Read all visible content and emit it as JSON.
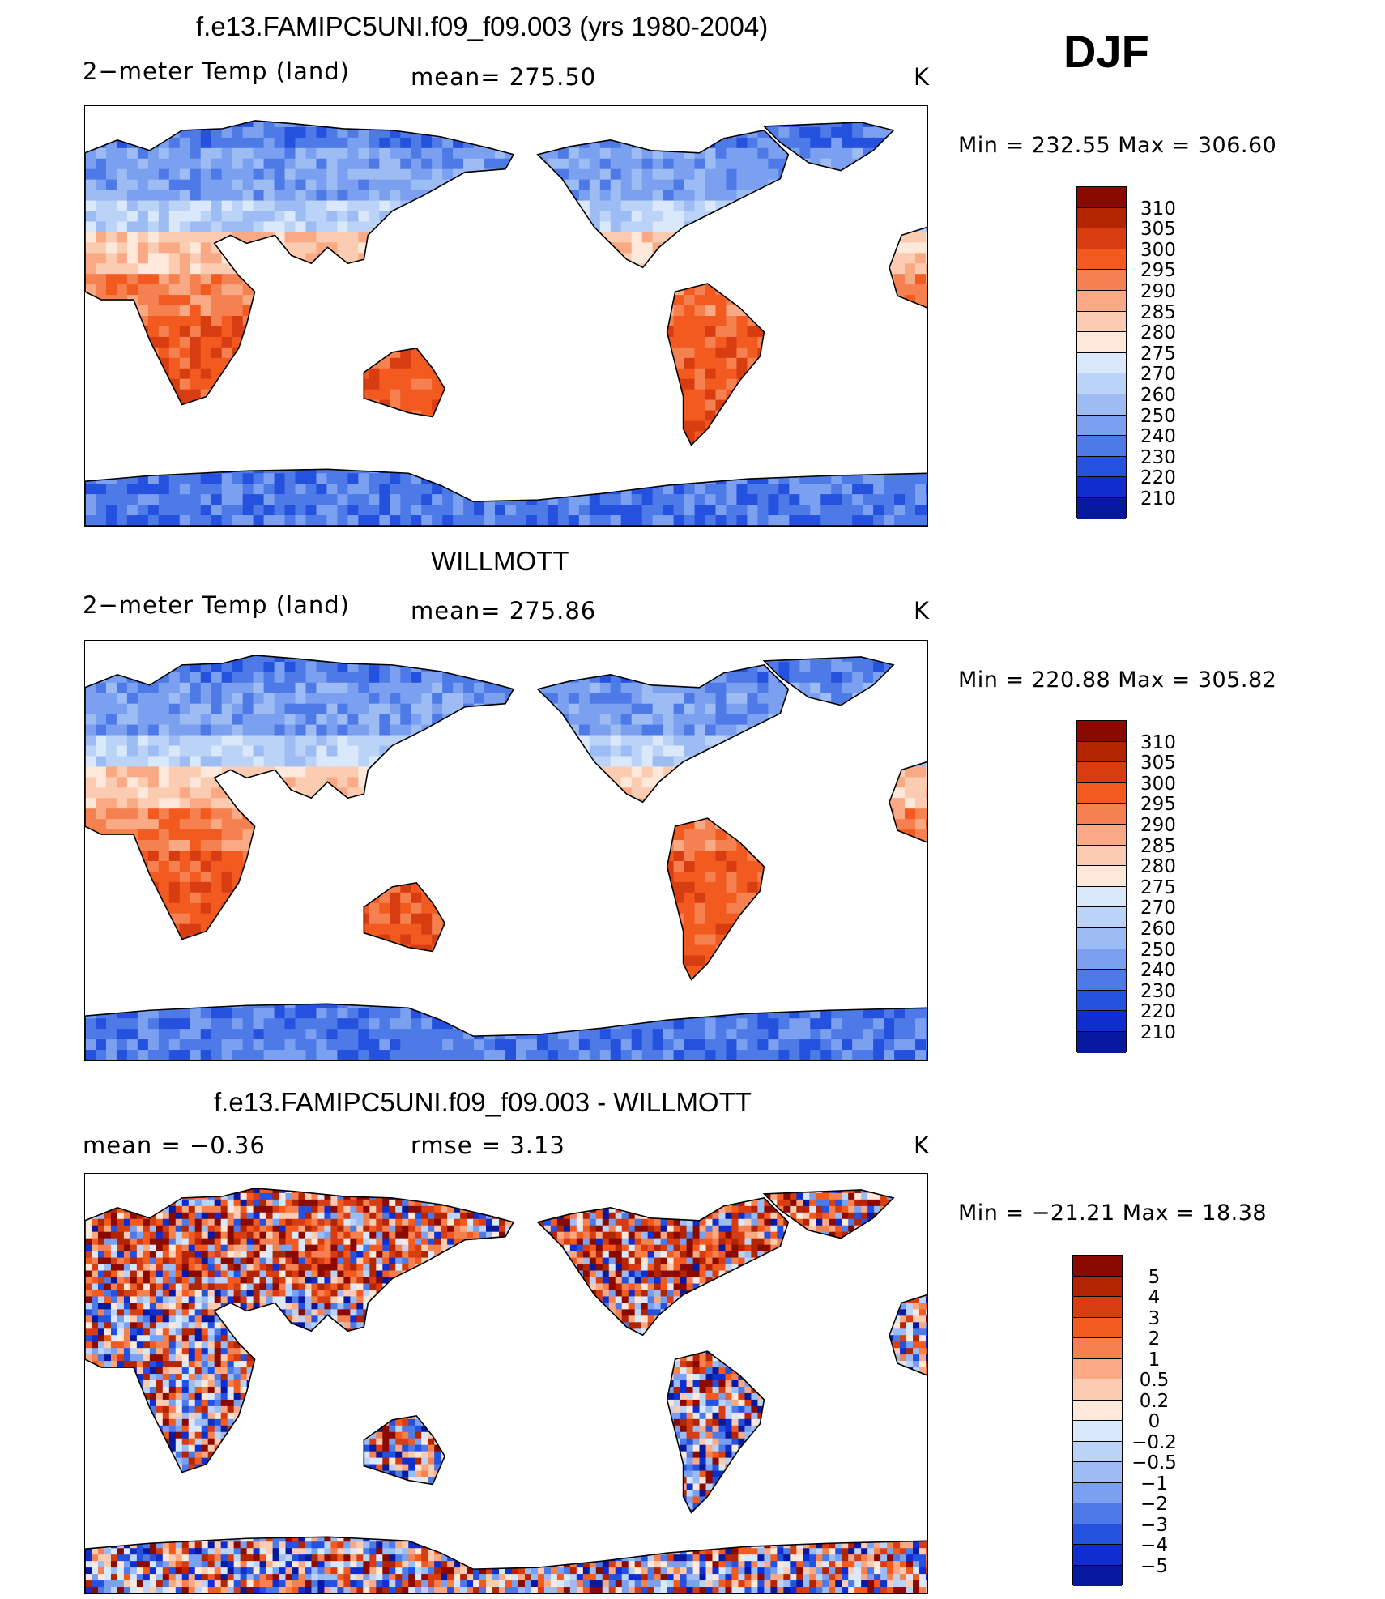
{
  "header": {
    "season": "DJF"
  },
  "panels": [
    {
      "id": "model",
      "title": "f.e13.FAMIPC5UNI.f09_f09.003 (yrs 1980-2004)",
      "variable": "2−meter Temp (land)",
      "stat_text": "mean=  275.50",
      "units": "K",
      "minmax": "Min  =  232.55  Max  =  306.60",
      "kind": "temp"
    },
    {
      "id": "obs",
      "title": "WILLMOTT",
      "variable": "2−meter Temp (land)",
      "stat_text": "mean=  275.86",
      "units": "K",
      "minmax": "Min  =  220.88  Max  =  305.82",
      "kind": "temp"
    },
    {
      "id": "diff",
      "title": "f.e13.FAMIPC5UNI.f09_f09.003 - WILLMOTT",
      "mean_text": "mean  =     −0.36",
      "rmse_text": "rmse  =     3.13",
      "units": "K",
      "minmax": "Min  =  −21.21  Max  =    18.38",
      "kind": "diff"
    }
  ],
  "colorbars": {
    "temp": {
      "labels": [
        "310",
        "305",
        "300",
        "295",
        "290",
        "285",
        "280",
        "275",
        "270",
        "260",
        "250",
        "240",
        "230",
        "220",
        "210"
      ],
      "colors": [
        "#8b0a00",
        "#b32400",
        "#d83d12",
        "#f25a20",
        "#f58150",
        "#f9aa84",
        "#fbccb2",
        "#fde8da",
        "#d9e8fb",
        "#bcd3f8",
        "#9dbcf4",
        "#7aa0ef",
        "#4e7ae8",
        "#2551df",
        "#0f2ed0",
        "#07199f"
      ]
    },
    "diff": {
      "labels": [
        "5",
        "4",
        "3",
        "2",
        "1",
        "0.5",
        "0.2",
        "0",
        "−0.2",
        "−0.5",
        "−1",
        "−2",
        "−3",
        "−4",
        "−5"
      ],
      "colors": [
        "#8b0a00",
        "#b32400",
        "#d83d12",
        "#f25a20",
        "#f58150",
        "#f9aa84",
        "#fbccb2",
        "#fde8da",
        "#d9e8fb",
        "#bcd3f8",
        "#9dbcf4",
        "#7aa0ef",
        "#4e7ae8",
        "#2551df",
        "#0f2ed0",
        "#07199f"
      ]
    }
  }
}
